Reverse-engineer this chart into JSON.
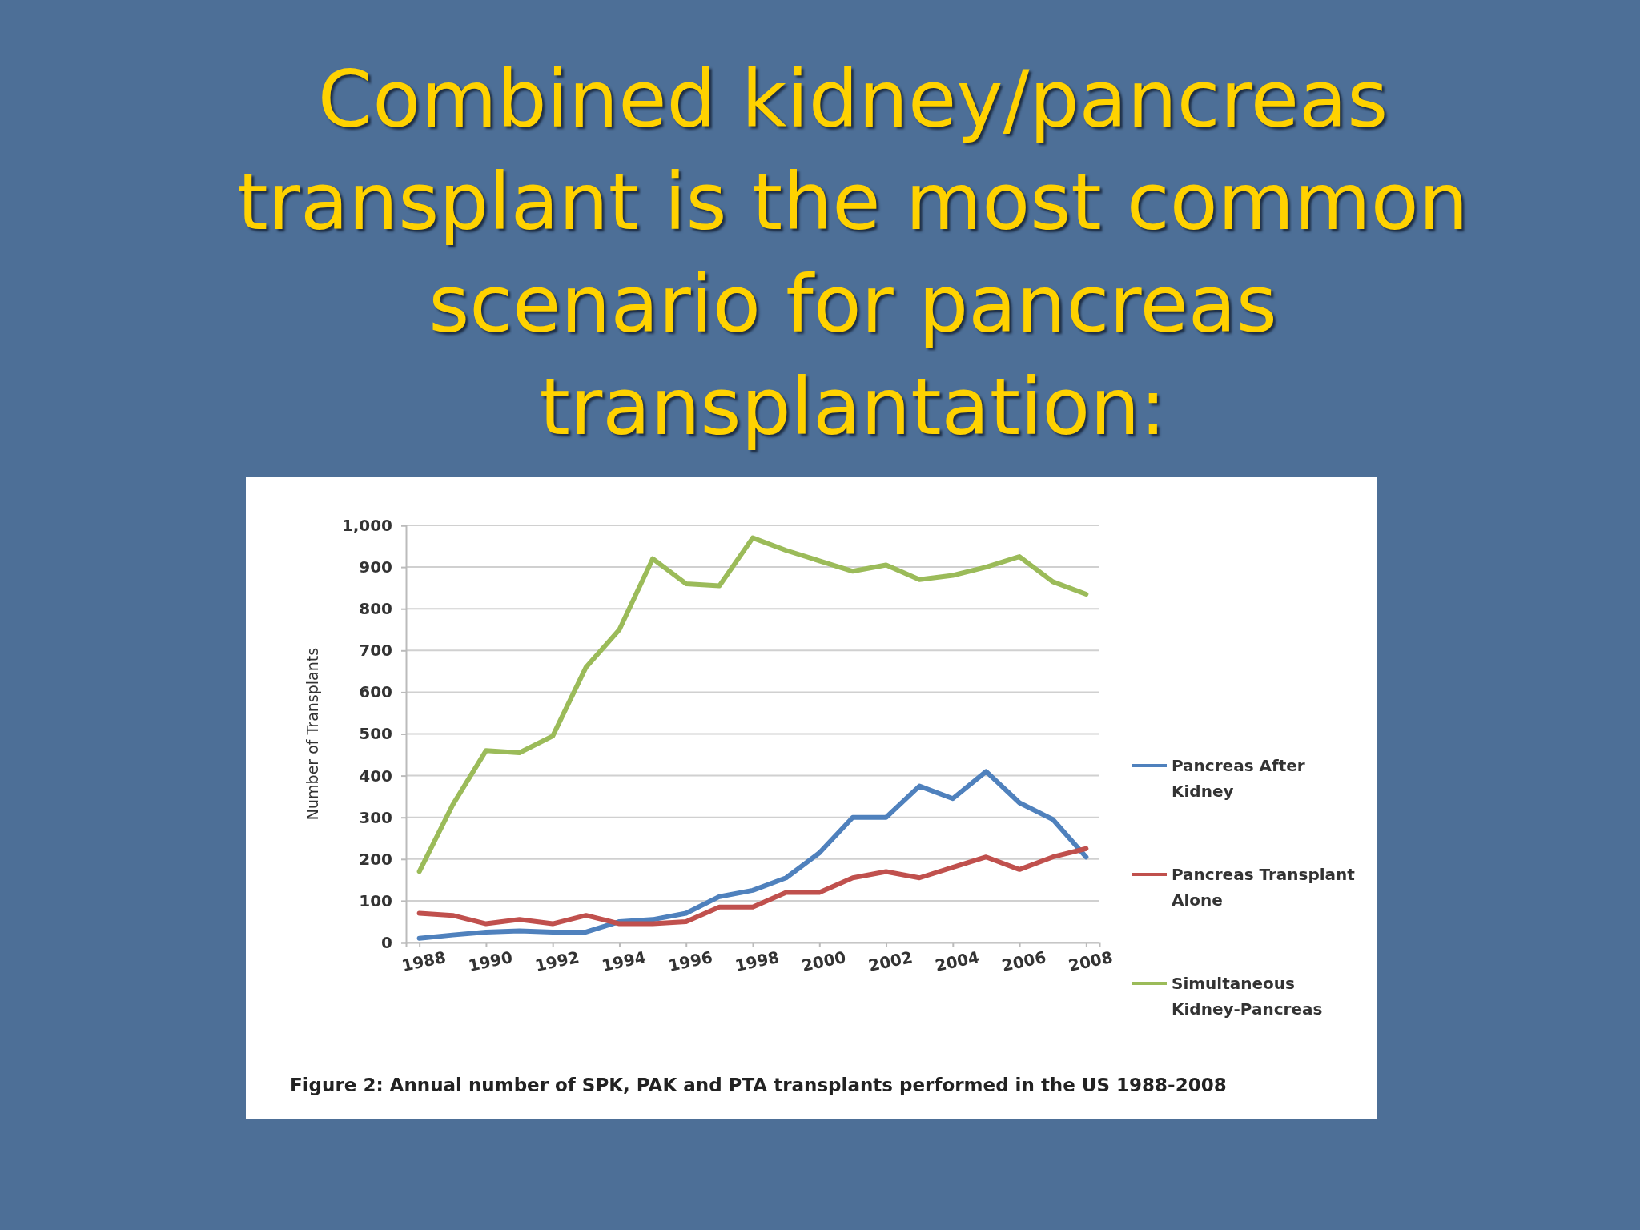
{
  "chart_data": {
    "type": "line",
    "title": "Combined kidney/pancreas transplant is the most common scenario for pancreas transplantation:",
    "ylabel": "Number of Transplants",
    "annotations": [
      "Figure 2: Annual number of SPK, PAK and PTA transplants performed in the US 1988-2008"
    ],
    "x": [
      1988,
      1989,
      1990,
      1991,
      1992,
      1993,
      1994,
      1995,
      1996,
      1997,
      1998,
      1999,
      2000,
      2001,
      2002,
      2003,
      2004,
      2005,
      2006,
      2007,
      2008
    ],
    "xlim": [
      1987.6,
      2008.4
    ],
    "xticks": [
      1988,
      1990,
      1992,
      1994,
      1996,
      1998,
      2000,
      2002,
      2004,
      2006,
      2008
    ],
    "ylim": [
      0,
      1000
    ],
    "yticks": [
      0,
      100,
      200,
      300,
      400,
      500,
      600,
      700,
      800,
      900,
      {
        "value": 1000,
        "label": "1,000"
      }
    ],
    "grid": "y",
    "legend": "right",
    "line_style": "solid",
    "series": [
      {
        "name": "Pancreas After Kidney",
        "color": "#4f81bd",
        "values": [
          10,
          18,
          25,
          28,
          25,
          25,
          50,
          55,
          70,
          110,
          125,
          155,
          215,
          300,
          300,
          375,
          345,
          410,
          335,
          295,
          205
        ]
      },
      {
        "name": "Pancreas Transplant Alone",
        "color": "#c0504d",
        "values": [
          70,
          65,
          45,
          55,
          45,
          65,
          45,
          45,
          50,
          85,
          85,
          120,
          120,
          155,
          170,
          155,
          180,
          205,
          175,
          205,
          225
        ]
      },
      {
        "name": "Simultaneous Kidney-Pancreas",
        "color": "#9bbb59",
        "values": [
          170,
          330,
          460,
          455,
          495,
          660,
          750,
          920,
          860,
          855,
          970,
          940,
          915,
          890,
          905,
          870,
          880,
          900,
          925,
          865,
          835
        ]
      }
    ]
  }
}
